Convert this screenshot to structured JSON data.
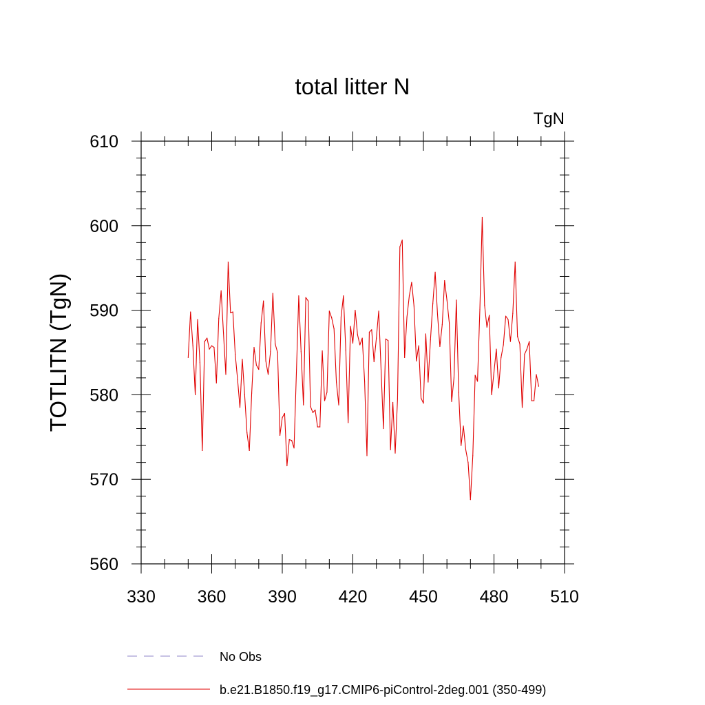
{
  "chart_data": {
    "type": "line",
    "title": "total litter N",
    "units": "TgN",
    "ylabel": "TOTLITN  (TgN)",
    "xlabel": "",
    "xlim": [
      330,
      510
    ],
    "ylim": [
      560,
      610
    ],
    "xticks": [
      330,
      360,
      390,
      420,
      450,
      480,
      510
    ],
    "yticks": [
      560,
      570,
      580,
      590,
      600,
      610
    ],
    "grid": false,
    "legend_position": "bottom-left",
    "legend": [
      {
        "label": "No Obs",
        "style": "dashed",
        "color": "#8f86c8"
      },
      {
        "label": "b.e21.B1850.f19_g17.CMIP6-piControl-2deg.001 (350-499)",
        "style": "solid",
        "color": "#e00000"
      }
    ],
    "series": [
      {
        "name": "b.e21.B1850.f19_g17.CMIP6-piControl-2deg.001 (350-499)",
        "color": "#e00000",
        "x_start": 350,
        "x_step": 1,
        "values": [
          584.4,
          589.8,
          585.8,
          580.0,
          588.9,
          583.8,
          573.4,
          586.3,
          586.7,
          585.4,
          585.8,
          585.6,
          581.4,
          589.0,
          592.3,
          587.3,
          582.4,
          595.7,
          589.7,
          589.8,
          584.8,
          581.8,
          578.5,
          584.2,
          580.0,
          575.5,
          573.4,
          580.2,
          585.6,
          583.5,
          583.0,
          588.5,
          591.1,
          584.0,
          582.4,
          585.1,
          592.0,
          586.0,
          585.0,
          575.2,
          577.3,
          577.8,
          571.6,
          574.7,
          574.6,
          573.7,
          582.6,
          591.7,
          585.1,
          578.8,
          591.5,
          591.1,
          578.6,
          577.9,
          578.2,
          576.2,
          576.2,
          585.2,
          579.3,
          580.3,
          589.9,
          589.1,
          587.8,
          581.5,
          578.8,
          589.2,
          591.7,
          585.3,
          576.7,
          588.1,
          586.1,
          590.0,
          587.1,
          585.9,
          586.7,
          581.6,
          572.8,
          587.4,
          587.7,
          583.9,
          586.7,
          589.9,
          583.0,
          576.0,
          586.6,
          586.4,
          573.5,
          579.1,
          573.1,
          579.5,
          597.5,
          598.3,
          584.4,
          589.2,
          591.7,
          593.3,
          590.5,
          584.0,
          585.8,
          579.6,
          579.0,
          587.2,
          581.5,
          586.5,
          590.8,
          594.5,
          589.5,
          585.7,
          588.3,
          593.5,
          591.2,
          588.5,
          579.2,
          582.0,
          591.2,
          580.3,
          574.0,
          576.3,
          573.5,
          572.0,
          567.6,
          572.8,
          582.3,
          581.6,
          590.1,
          601.0,
          590.6,
          588.0,
          589.4,
          580.0,
          582.7,
          585.4,
          580.8,
          584.4,
          585.9,
          589.3,
          588.9,
          586.3,
          589.6,
          595.7,
          586.9,
          586.0,
          578.5,
          584.8,
          585.4,
          586.3,
          579.3,
          579.3,
          582.4,
          581.0
        ]
      }
    ]
  }
}
